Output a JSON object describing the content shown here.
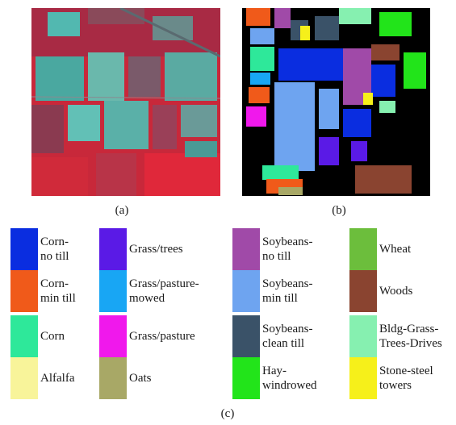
{
  "captions": {
    "a": "(a)",
    "b": "(b)",
    "c": "(c)"
  },
  "legend": [
    {
      "label": "Corn-\nno till",
      "color": "#0a2de0"
    },
    {
      "label": "Corn-\nmin till",
      "color": "#f05a1a"
    },
    {
      "label": "Corn",
      "color": "#2ee89a"
    },
    {
      "label": "Alfalfa",
      "color": "#f8f49a"
    },
    {
      "label": "Grass/trees",
      "color": "#5a1ae6"
    },
    {
      "label": "Grass/pasture-\nmowed",
      "color": "#18a6f4"
    },
    {
      "label": "Grass/pasture",
      "color": "#f018ec"
    },
    {
      "label": "Oats",
      "color": "#a8a866"
    },
    {
      "label": "Soybeans-\nno till",
      "color": "#a04aa8"
    },
    {
      "label": "Soybeans-\nmin till",
      "color": "#6ea4f0"
    },
    {
      "label": "Soybeans-\nclean till",
      "color": "#3a5268"
    },
    {
      "label": "Hay-\nwindrowed",
      "color": "#22e41a"
    },
    {
      "label": "Wheat",
      "color": "#6cbe3c"
    },
    {
      "label": "Woods",
      "color": "#8a4430"
    },
    {
      "label": "Bldg-Grass-\nTrees-Drives",
      "color": "#86f0b0"
    },
    {
      "label": "Stone-steel\ntowers",
      "color": "#f6f01a"
    }
  ]
}
